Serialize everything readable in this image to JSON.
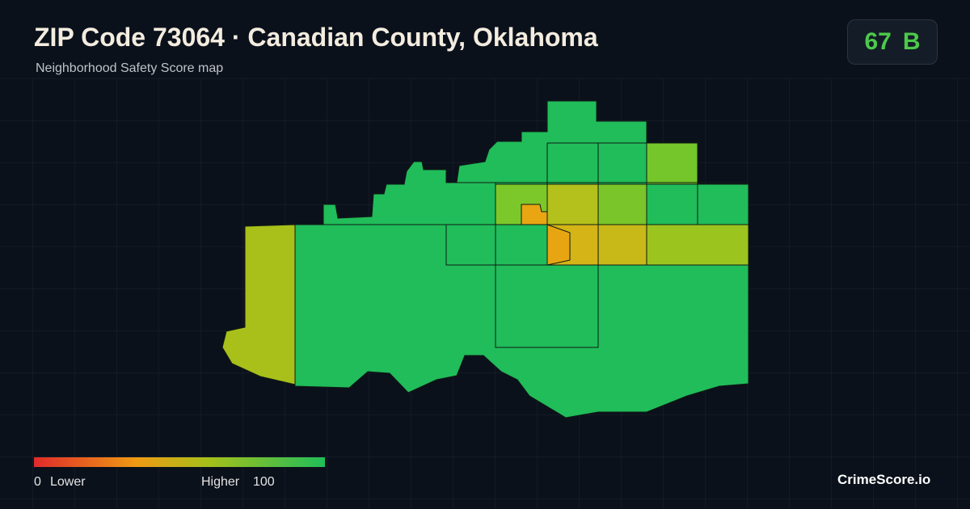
{
  "header": {
    "title": "ZIP Code 73064 · Canadian County, Oklahoma",
    "subtitle": "Neighborhood Safety Score map"
  },
  "score": {
    "value": 67,
    "grade": "B"
  },
  "legend": {
    "min": 0,
    "min_label": "Lower",
    "max_label": "Higher",
    "max": 100
  },
  "brand": "CrimeScore.io"
}
